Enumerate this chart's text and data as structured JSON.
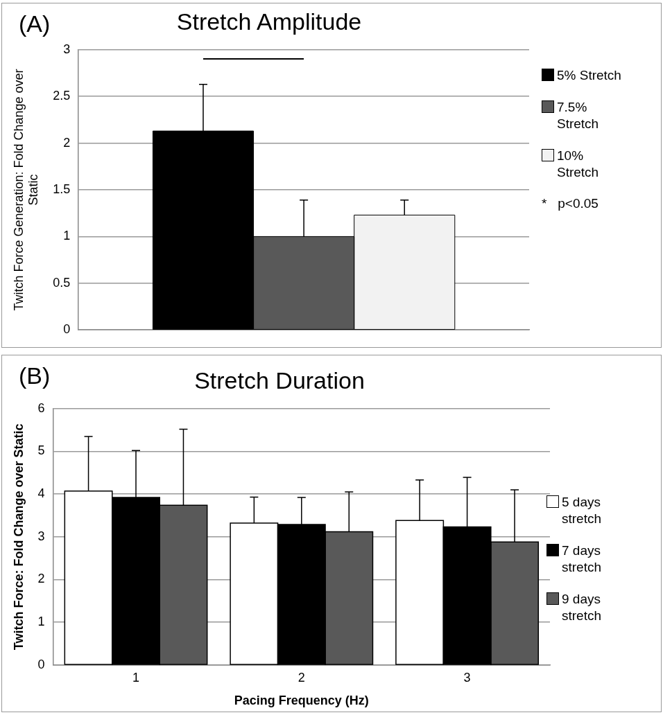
{
  "chart_data": [
    {
      "type": "bar",
      "title": "Stretch Amplitude",
      "ylabel": "Twitch Force Generation: Fold Change over Static",
      "categories": [
        null
      ],
      "series": [
        {
          "name": "5% Stretch",
          "color": "#000000",
          "values": [
            2.13
          ],
          "errors": [
            0.5
          ]
        },
        {
          "name": "7.5% Stretch",
          "color": "#595959",
          "values": [
            1.0
          ],
          "errors": [
            0.39
          ]
        },
        {
          "name": "10% Stretch",
          "color": "#f2f2f2",
          "values": [
            1.23
          ],
          "errors": [
            0.16
          ]
        }
      ],
      "ylim": [
        0,
        3
      ],
      "yticks": [
        0,
        0.5,
        1,
        1.5,
        2,
        2.5,
        3
      ],
      "grid": "y",
      "legend": "right",
      "tick_labels": "y",
      "annotations": [
        "(A)",
        "*   p<0.05"
      ]
    },
    {
      "type": "bar",
      "title": "Stretch Duration",
      "ylabel": "Twitch Force: Fold Change over Static",
      "xlabel": "Pacing Frequency (Hz)",
      "categories": [
        "1",
        "2",
        "3"
      ],
      "series": [
        {
          "name": "5 days stretch",
          "color": "#ffffff",
          "values": [
            4.07,
            3.32,
            3.38
          ],
          "errors": [
            1.28,
            0.61,
            0.95
          ]
        },
        {
          "name": "7 days stretch",
          "color": "#000000",
          "values": [
            3.92,
            3.29,
            3.23
          ],
          "errors": [
            1.1,
            0.63,
            1.16
          ]
        },
        {
          "name": "9 days stretch",
          "color": "#595959",
          "values": [
            3.74,
            3.12,
            2.88
          ],
          "errors": [
            1.78,
            0.93,
            1.22
          ]
        }
      ],
      "ylim": [
        0,
        6
      ],
      "yticks": [
        0,
        1,
        2,
        3,
        4,
        5,
        6
      ],
      "grid": "y",
      "legend": "right",
      "annotations": [
        "(B)"
      ]
    }
  ]
}
